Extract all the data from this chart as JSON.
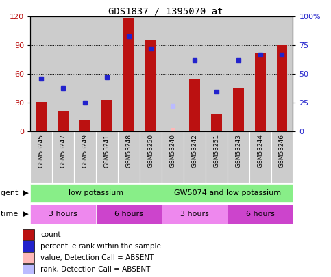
{
  "title": "GDS1837 / 1395070_at",
  "samples": [
    "GSM53245",
    "GSM53247",
    "GSM53249",
    "GSM53241",
    "GSM53248",
    "GSM53250",
    "GSM53240",
    "GSM53242",
    "GSM53251",
    "GSM53243",
    "GSM53244",
    "GSM53246"
  ],
  "counts": [
    31,
    22,
    12,
    33,
    119,
    96,
    null,
    55,
    18,
    46,
    82,
    90
  ],
  "counts_absent": [
    null,
    null,
    null,
    null,
    null,
    null,
    4,
    null,
    null,
    null,
    null,
    null
  ],
  "percentile_ranks": [
    46,
    38,
    25,
    47,
    83,
    72,
    null,
    62,
    35,
    62,
    67,
    67
  ],
  "percentile_ranks_absent": [
    null,
    null,
    null,
    null,
    null,
    null,
    22,
    null,
    null,
    null,
    null,
    null
  ],
  "ylim_left": [
    0,
    120
  ],
  "ylim_right": [
    0,
    100
  ],
  "yticks_left": [
    0,
    30,
    60,
    90,
    120
  ],
  "yticks_right": [
    0,
    25,
    50,
    75,
    100
  ],
  "ytick_labels_left": [
    "0",
    "30",
    "60",
    "90",
    "120"
  ],
  "ytick_labels_right": [
    "0",
    "25",
    "50",
    "75",
    "100%"
  ],
  "bar_color": "#bb1111",
  "bar_color_absent": "#ffb8b8",
  "dot_color": "#2222cc",
  "dot_color_absent": "#bbbbff",
  "agent_groups": [
    {
      "label": "low potassium",
      "start": 0,
      "end": 5
    },
    {
      "label": "GW5074 and low potassium",
      "start": 6,
      "end": 11
    }
  ],
  "agent_color": "#88ee88",
  "time_groups": [
    {
      "label": "3 hours",
      "start": 0,
      "end": 2,
      "color": "#ee88ee"
    },
    {
      "label": "6 hours",
      "start": 3,
      "end": 5,
      "color": "#cc44cc"
    },
    {
      "label": "3 hours",
      "start": 6,
      "end": 8,
      "color": "#ee88ee"
    },
    {
      "label": "6 hours",
      "start": 9,
      "end": 11,
      "color": "#cc44cc"
    }
  ],
  "agent_label": "agent",
  "time_label": "time",
  "legend_items": [
    {
      "label": "count",
      "color": "#bb1111"
    },
    {
      "label": "percentile rank within the sample",
      "color": "#2222cc"
    },
    {
      "label": "value, Detection Call = ABSENT",
      "color": "#ffb8b8"
    },
    {
      "label": "rank, Detection Call = ABSENT",
      "color": "#bbbbff"
    }
  ],
  "bg_color": "#cccccc",
  "sample_bg_color": "#cccccc",
  "title_fontsize": 10,
  "tick_fontsize": 8,
  "bar_width": 0.5,
  "n_samples": 12
}
